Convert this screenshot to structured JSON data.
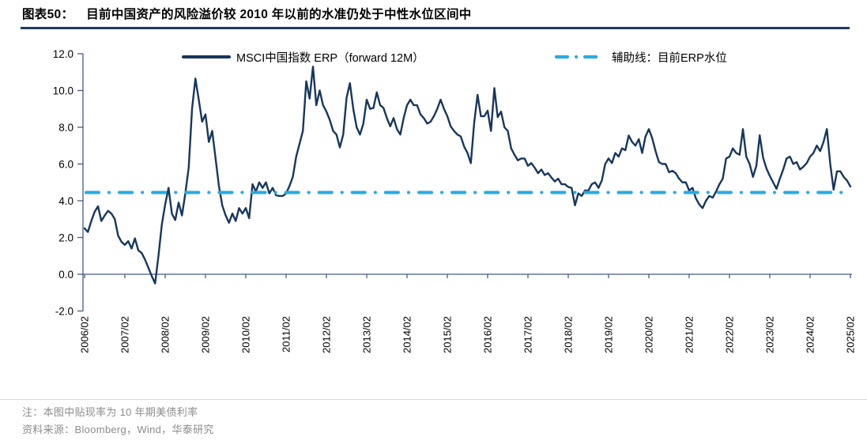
{
  "figure": {
    "tag": "图表50：",
    "title": "目前中国资产的风险溢价较 2010 年以前的水准仍处于中性水位区间中"
  },
  "legend": {
    "series_label": "MSCI中国指数 ERP（forward 12M）",
    "reference_label": "辅助线：目前ERP水位"
  },
  "notes": {
    "note": "注：本图中贴现率为 10 年期美债利率",
    "source": "资料来源：Bloomberg，Wind，华泰研究"
  },
  "colors": {
    "series": "#17375E",
    "reference": "#29ABE2",
    "axis": "#465A8C",
    "title_rule": "#1F3864",
    "note_text": "#8C8C8C"
  },
  "chart_data": {
    "type": "line",
    "title": "MSCI中国指数 ERP（forward 12M）",
    "x_start": "2006/02",
    "x_end": "2025/02",
    "frequency": "monthly",
    "x_tick_labels": [
      "2006/02",
      "2007/02",
      "2008/02",
      "2009/02",
      "2010/02",
      "2011/02",
      "2012/02",
      "2013/02",
      "2014/02",
      "2015/02",
      "2016/02",
      "2017/02",
      "2018/02",
      "2019/02",
      "2020/02",
      "2021/02",
      "2022/02",
      "2023/02",
      "2024/02",
      "2025/02"
    ],
    "y_tick_labels": [
      "12.0",
      "10.0",
      "8.0",
      "6.0",
      "4.0",
      "2.0",
      "0.0",
      "-2.0"
    ],
    "y_ticks": [
      12,
      10,
      8,
      6,
      4,
      2,
      0,
      -2
    ],
    "ylim": [
      -2,
      12
    ],
    "grid": false,
    "legend_position": "top-inside",
    "reference_line": {
      "name": "辅助线：目前ERP水位",
      "value": 4.45,
      "style": "dash-dot"
    },
    "series": [
      {
        "name": "MSCI中国指数 ERP（forward 12M）",
        "values": [
          2.5,
          2.3,
          2.9,
          3.4,
          3.7,
          2.9,
          3.2,
          3.45,
          3.3,
          3.0,
          2.1,
          1.76,
          1.6,
          1.8,
          1.4,
          1.95,
          1.3,
          1.16,
          0.8,
          0.35,
          -0.1,
          -0.5,
          1.0,
          2.7,
          3.8,
          4.7,
          3.3,
          2.95,
          3.9,
          3.2,
          4.4,
          5.8,
          9.0,
          10.65,
          9.5,
          8.3,
          8.7,
          7.2,
          7.8,
          6.3,
          4.8,
          3.74,
          3.2,
          2.8,
          3.3,
          2.9,
          3.6,
          3.3,
          3.6,
          3.05,
          4.9,
          4.5,
          5.0,
          4.7,
          5.0,
          4.4,
          4.7,
          4.3,
          4.26,
          4.26,
          4.4,
          4.8,
          5.3,
          6.4,
          7.1,
          7.8,
          10.5,
          9.56,
          11.3,
          9.2,
          10.0,
          9.2,
          8.85,
          8.4,
          7.8,
          7.6,
          6.9,
          7.6,
          9.6,
          10.4,
          9.0,
          8.0,
          7.6,
          8.2,
          9.5,
          9.0,
          9.05,
          9.9,
          9.2,
          9.05,
          8.5,
          8.05,
          8.5,
          7.9,
          7.6,
          8.5,
          9.2,
          9.5,
          9.2,
          9.2,
          8.7,
          8.5,
          8.2,
          8.3,
          8.6,
          9.0,
          9.5,
          9.0,
          8.6,
          8.05,
          7.8,
          7.6,
          7.5,
          6.95,
          6.6,
          6.05,
          8.25,
          9.76,
          8.6,
          8.6,
          8.9,
          7.8,
          10.13,
          8.55,
          8.85,
          8.0,
          7.8,
          6.85,
          6.5,
          6.2,
          6.3,
          6.3,
          5.9,
          6.05,
          5.8,
          5.5,
          5.7,
          5.4,
          5.5,
          5.26,
          5.05,
          5.2,
          4.9,
          4.9,
          4.75,
          4.7,
          3.75,
          4.4,
          4.26,
          4.56,
          4.55,
          4.9,
          5.0,
          4.7,
          5.1,
          6.0,
          6.3,
          6.05,
          6.6,
          6.4,
          6.85,
          6.75,
          7.55,
          7.2,
          7.0,
          7.35,
          6.6,
          7.5,
          7.9,
          7.4,
          6.7,
          6.1,
          6.0,
          6.0,
          5.55,
          5.63,
          5.5,
          5.2,
          5.0,
          5.0,
          4.56,
          4.7,
          4.13,
          3.8,
          3.6,
          4.0,
          4.26,
          4.17,
          4.5,
          4.9,
          5.2,
          6.3,
          6.4,
          6.85,
          6.6,
          6.5,
          7.9,
          6.4,
          6.0,
          5.3,
          5.9,
          7.56,
          6.35,
          5.76,
          5.35,
          5.0,
          4.65,
          5.2,
          5.7,
          6.3,
          6.4,
          6.0,
          6.1,
          5.7,
          5.85,
          6.05,
          6.4,
          6.6,
          7.0,
          6.7,
          7.2,
          7.9,
          6.0,
          4.6,
          5.6,
          5.6,
          5.3,
          5.1,
          4.77
        ]
      }
    ]
  }
}
